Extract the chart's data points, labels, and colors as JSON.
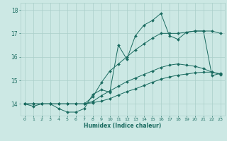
{
  "xlabel": "Humidex (Indice chaleur)",
  "xlim": [
    -0.5,
    23.5
  ],
  "ylim": [
    13.5,
    18.3
  ],
  "yticks": [
    14,
    15,
    16,
    17,
    18
  ],
  "xticks": [
    0,
    1,
    2,
    3,
    4,
    5,
    6,
    7,
    8,
    9,
    10,
    11,
    12,
    13,
    14,
    15,
    16,
    17,
    18,
    19,
    20,
    21,
    22,
    23
  ],
  "bg_color": "#cce8e4",
  "line_color": "#1a6b60",
  "grid_color": "#aacfca",
  "line1_x": [
    0,
    1,
    2,
    3,
    4,
    5,
    6,
    7,
    8,
    9,
    10,
    11,
    12,
    13,
    14,
    15,
    16,
    17,
    18,
    19,
    20,
    21,
    22,
    23
  ],
  "line1_y": [
    14.0,
    13.9,
    14.0,
    14.0,
    13.8,
    13.65,
    13.65,
    13.8,
    14.4,
    14.6,
    14.5,
    16.5,
    15.9,
    16.9,
    17.35,
    17.55,
    17.85,
    16.9,
    16.75,
    17.05,
    17.1,
    17.1,
    15.2,
    15.3
  ],
  "line2_x": [
    0,
    1,
    2,
    3,
    4,
    5,
    6,
    7,
    8,
    9,
    10,
    11,
    12,
    13,
    14,
    15,
    16,
    17,
    18,
    19,
    20,
    21,
    22,
    23
  ],
  "line2_y": [
    14.0,
    14.0,
    14.0,
    14.0,
    14.0,
    14.0,
    14.0,
    14.0,
    14.3,
    14.9,
    15.4,
    15.7,
    16.0,
    16.3,
    16.55,
    16.8,
    17.0,
    17.0,
    17.0,
    17.05,
    17.1,
    17.1,
    17.1,
    17.0
  ],
  "line3_x": [
    0,
    1,
    2,
    3,
    4,
    5,
    6,
    7,
    8,
    9,
    10,
    11,
    12,
    13,
    14,
    15,
    16,
    17,
    18,
    19,
    20,
    21,
    22,
    23
  ],
  "line3_y": [
    14.0,
    14.0,
    14.0,
    14.0,
    14.0,
    14.0,
    14.0,
    14.0,
    14.1,
    14.35,
    14.55,
    14.75,
    14.95,
    15.1,
    15.25,
    15.4,
    15.55,
    15.65,
    15.7,
    15.65,
    15.6,
    15.5,
    15.35,
    15.25
  ],
  "line4_x": [
    0,
    1,
    2,
    3,
    4,
    5,
    6,
    7,
    8,
    9,
    10,
    11,
    12,
    13,
    14,
    15,
    16,
    17,
    18,
    19,
    20,
    21,
    22,
    23
  ],
  "line4_y": [
    14.0,
    14.0,
    14.0,
    14.0,
    14.0,
    14.0,
    14.0,
    14.0,
    14.05,
    14.12,
    14.22,
    14.38,
    14.52,
    14.64,
    14.78,
    14.92,
    15.05,
    15.15,
    15.22,
    15.27,
    15.32,
    15.35,
    15.35,
    15.28
  ]
}
